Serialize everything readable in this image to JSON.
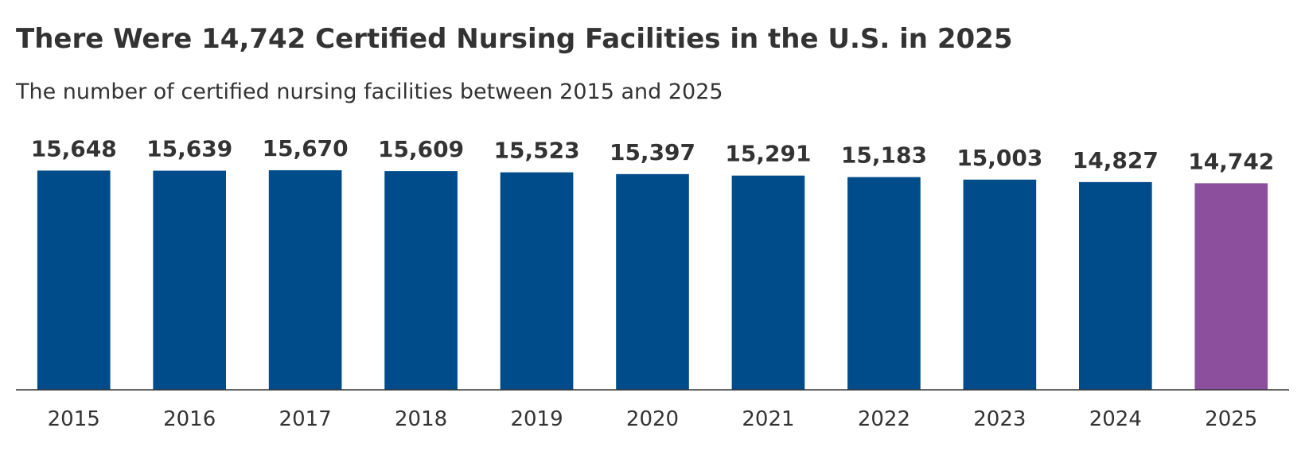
{
  "chart_data": {
    "type": "bar",
    "title": "There Were 14,742 Certified Nursing Facilities in the U.S. in 2025",
    "subtitle": "The number of certified nursing facilities between 2015 and 2025",
    "categories": [
      "2015",
      "2016",
      "2017",
      "2018",
      "2019",
      "2020",
      "2021",
      "2022",
      "2023",
      "2024",
      "2025"
    ],
    "values": [
      15648,
      15639,
      15670,
      15609,
      15523,
      15397,
      15291,
      15183,
      15003,
      14827,
      14742
    ],
    "value_labels": [
      "15,648",
      "15,639",
      "15,670",
      "15,609",
      "15,523",
      "15,397",
      "15,291",
      "15,183",
      "15,003",
      "14,827",
      "14,742"
    ],
    "colors": [
      "#004b8a",
      "#004b8a",
      "#004b8a",
      "#004b8a",
      "#004b8a",
      "#004b8a",
      "#004b8a",
      "#004b8a",
      "#004b8a",
      "#004b8a",
      "#8b4f9e"
    ],
    "ylim": [
      0,
      18000
    ]
  }
}
